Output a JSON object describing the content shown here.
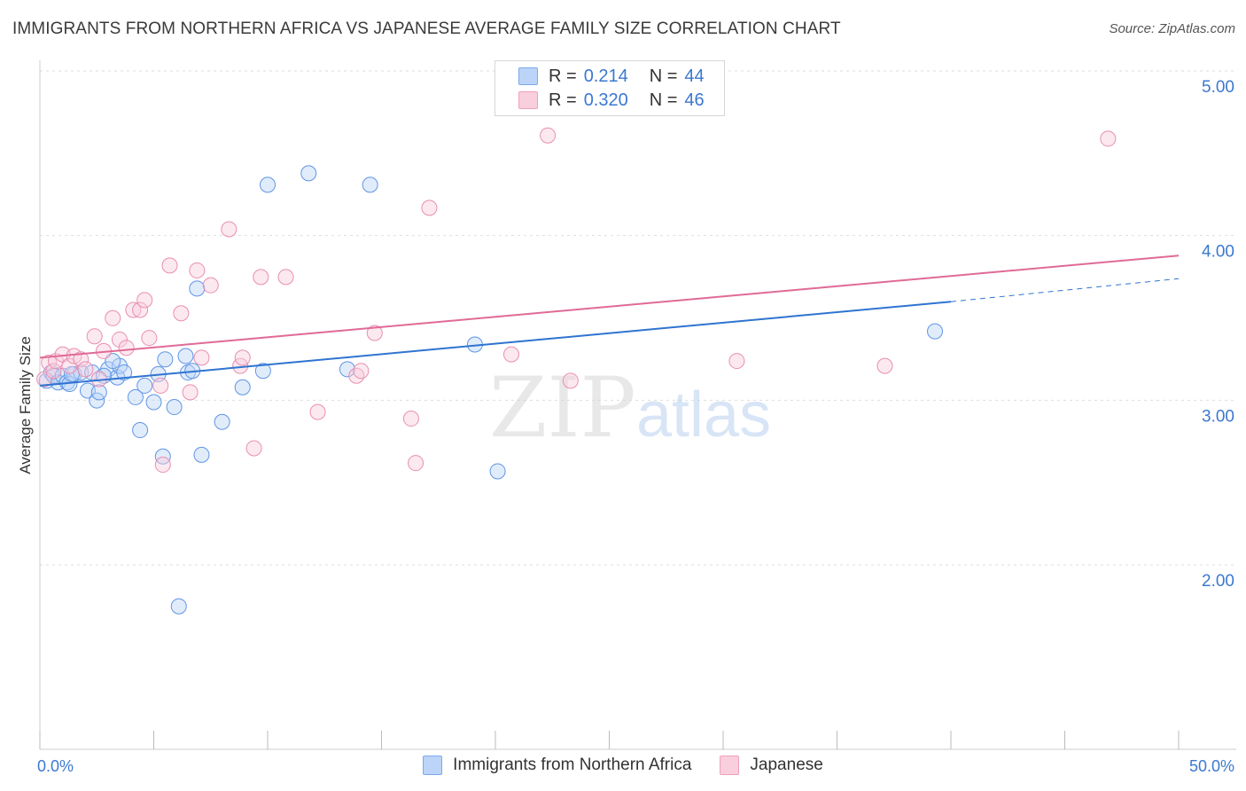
{
  "title": "IMMIGRANTS FROM NORTHERN AFRICA VS JAPANESE AVERAGE FAMILY SIZE CORRELATION CHART",
  "source": "Source: ZipAtlas.com",
  "watermark": {
    "zip": "ZIP",
    "atlas": "atlas"
  },
  "legend_top": [
    {
      "r_label": "R =",
      "r_value": "0.214",
      "n_label": "N =",
      "n_value": "44"
    },
    {
      "r_label": "R =",
      "r_value": "0.320",
      "n_label": "N =",
      "n_value": "46"
    }
  ],
  "chart_data": {
    "type": "scatter",
    "title": "IMMIGRANTS FROM NORTHERN AFRICA VS JAPANESE AVERAGE FAMILY SIZE CORRELATION CHART",
    "xlabel": "",
    "ylabel": "Average Family Size",
    "xlim": [
      0,
      50
    ],
    "ylim": [
      1.2,
      5.1
    ],
    "x_tick_labels": [
      "0.0%",
      "50.0%"
    ],
    "y_ticks": [
      2.0,
      3.0,
      4.0,
      5.0
    ],
    "y_tick_labels": [
      "2.00",
      "3.00",
      "4.00",
      "5.00"
    ],
    "grid": "horizontal dashed",
    "legend_placement": "bottom-center",
    "series": [
      {
        "name": "Immigrants from Northern Africa",
        "color": "#7aaaf0",
        "line_color": "#2f74d0",
        "trend": {
          "x0": 0,
          "y0": 3.18,
          "x1": 40,
          "y1": 3.69,
          "dashed_x1": 50,
          "dashed_y1": 3.83
        },
        "points": [
          [
            0.3,
            3.21
          ],
          [
            0.5,
            3.26
          ],
          [
            0.6,
            3.24
          ],
          [
            0.8,
            3.2
          ],
          [
            1.0,
            3.24
          ],
          [
            1.2,
            3.2
          ],
          [
            1.3,
            3.19
          ],
          [
            1.5,
            3.25
          ],
          [
            1.8,
            3.26
          ],
          [
            2.1,
            3.15
          ],
          [
            2.3,
            3.26
          ],
          [
            2.5,
            3.09
          ],
          [
            2.6,
            3.14
          ],
          [
            3.0,
            3.28
          ],
          [
            3.4,
            3.23
          ],
          [
            3.5,
            3.3
          ],
          [
            3.7,
            3.26
          ],
          [
            4.2,
            3.11
          ],
          [
            4.4,
            2.91
          ],
          [
            4.6,
            3.18
          ],
          [
            5.0,
            3.08
          ],
          [
            5.2,
            3.25
          ],
          [
            5.4,
            2.75
          ],
          [
            5.5,
            3.34
          ],
          [
            5.9,
            3.05
          ],
          [
            6.1,
            1.84
          ],
          [
            6.4,
            3.36
          ],
          [
            6.5,
            3.26
          ],
          [
            6.7,
            3.27
          ],
          [
            6.9,
            3.77
          ],
          [
            7.1,
            2.76
          ],
          [
            8.0,
            2.96
          ],
          [
            8.9,
            3.17
          ],
          [
            9.8,
            3.27
          ],
          [
            10.0,
            4.4
          ],
          [
            11.8,
            4.47
          ],
          [
            13.5,
            3.28
          ],
          [
            14.5,
            4.4
          ],
          [
            19.1,
            3.43
          ],
          [
            20.1,
            2.66
          ],
          [
            39.3,
            3.51
          ],
          [
            3.2,
            3.33
          ],
          [
            1.4,
            3.25
          ],
          [
            2.8,
            3.24
          ]
        ]
      },
      {
        "name": "Japanese",
        "color": "#f0a0bc",
        "line_color": "#e06a96",
        "trend": {
          "x0": 0,
          "y0": 3.35,
          "x1": 50,
          "y1": 3.97
        },
        "points": [
          [
            0.2,
            3.22
          ],
          [
            0.4,
            3.32
          ],
          [
            0.6,
            3.27
          ],
          [
            0.7,
            3.33
          ],
          [
            1.0,
            3.37
          ],
          [
            1.3,
            3.3
          ],
          [
            1.5,
            3.36
          ],
          [
            1.8,
            3.34
          ],
          [
            2.0,
            3.28
          ],
          [
            2.4,
            3.48
          ],
          [
            2.6,
            3.22
          ],
          [
            2.8,
            3.39
          ],
          [
            3.2,
            3.59
          ],
          [
            3.5,
            3.46
          ],
          [
            3.8,
            3.41
          ],
          [
            4.1,
            3.64
          ],
          [
            4.4,
            3.64
          ],
          [
            4.6,
            3.7
          ],
          [
            4.8,
            3.47
          ],
          [
            5.3,
            3.18
          ],
          [
            5.4,
            2.7
          ],
          [
            5.7,
            3.91
          ],
          [
            6.2,
            3.62
          ],
          [
            6.6,
            3.14
          ],
          [
            6.9,
            3.88
          ],
          [
            7.1,
            3.35
          ],
          [
            7.5,
            3.79
          ],
          [
            8.3,
            4.13
          ],
          [
            8.8,
            3.3
          ],
          [
            8.9,
            3.35
          ],
          [
            9.4,
            2.8
          ],
          [
            9.7,
            3.84
          ],
          [
            10.8,
            3.84
          ],
          [
            12.2,
            3.02
          ],
          [
            13.9,
            3.24
          ],
          [
            14.1,
            3.27
          ],
          [
            14.7,
            3.5
          ],
          [
            16.3,
            2.98
          ],
          [
            16.5,
            2.71
          ],
          [
            17.1,
            4.26
          ],
          [
            20.7,
            3.37
          ],
          [
            22.3,
            4.7
          ],
          [
            23.3,
            3.21
          ],
          [
            30.6,
            3.33
          ],
          [
            37.1,
            3.3
          ],
          [
            46.9,
            4.68
          ]
        ]
      }
    ]
  }
}
